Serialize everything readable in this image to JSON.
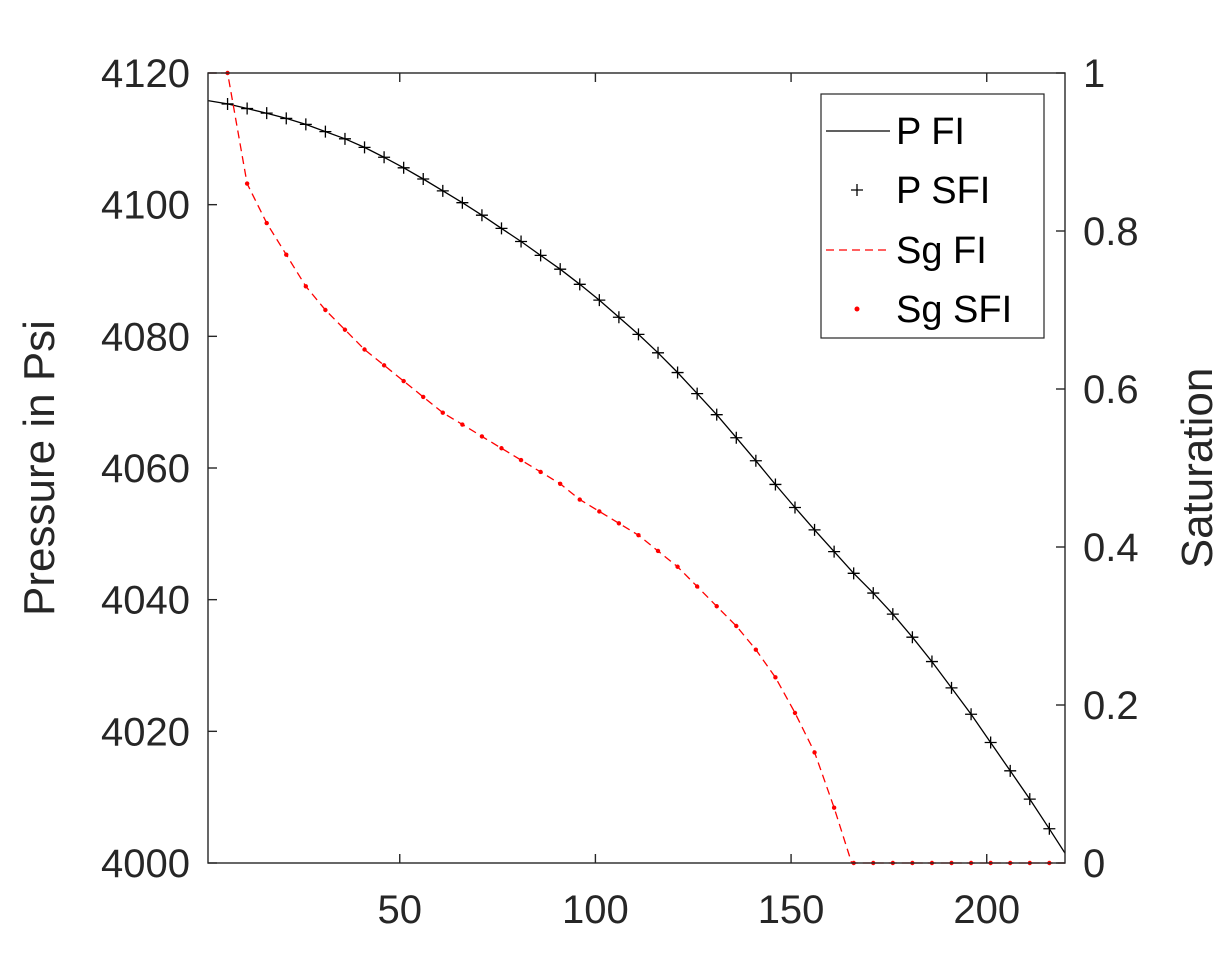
{
  "chart_data": {
    "type": "line",
    "xlabel": "",
    "ylabel_left": "Pressure in Psi",
    "ylabel_right": "Saturation",
    "xlim": [
      1,
      220
    ],
    "ylim_left": [
      4000,
      4120
    ],
    "ylim_right": [
      0,
      1
    ],
    "x_ticks": [
      50,
      100,
      150,
      200
    ],
    "y_left_ticks": [
      4000,
      4020,
      4040,
      4060,
      4080,
      4100,
      4120
    ],
    "y_right_ticks": [
      0,
      0.2,
      0.4,
      0.6,
      0.8,
      1
    ],
    "y_right_tick_labels": [
      "0",
      "0.2",
      "0.4",
      "0.6",
      "0.8",
      "1"
    ],
    "grid": false,
    "legend_position": "top-right",
    "series": [
      {
        "name": "P FI",
        "axis": "left",
        "style": "solid",
        "color": "#000000",
        "x": [
          1,
          6,
          11,
          16,
          21,
          26,
          31,
          36,
          41,
          46,
          51,
          56,
          61,
          66,
          71,
          76,
          81,
          86,
          91,
          96,
          101,
          106,
          111,
          116,
          121,
          126,
          131,
          136,
          141,
          146,
          151,
          156,
          161,
          166,
          171,
          176,
          181,
          186,
          191,
          196,
          201,
          206,
          211,
          216,
          220
        ],
        "y": [
          4115.8,
          4115.3,
          4114.6,
          4113.9,
          4113.1,
          4112.2,
          4111.1,
          4110.0,
          4108.7,
          4107.2,
          4105.6,
          4103.9,
          4102.1,
          4100.3,
          4098.4,
          4096.4,
          4094.4,
          4092.3,
          4090.2,
          4087.9,
          4085.5,
          4082.9,
          4080.3,
          4077.5,
          4074.5,
          4071.3,
          4068.1,
          4064.6,
          4061.1,
          4057.5,
          4054.0,
          4050.6,
          4047.3,
          4044.0,
          4041.0,
          4037.8,
          4034.3,
          4030.6,
          4026.6,
          4022.6,
          4018.3,
          4014.0,
          4009.7,
          4005.2,
          4001.5
        ]
      },
      {
        "name": "P SFI",
        "axis": "left",
        "style": "plus",
        "color": "#000000",
        "x": [
          6,
          11,
          16,
          21,
          26,
          31,
          36,
          41,
          46,
          51,
          56,
          61,
          66,
          71,
          76,
          81,
          86,
          91,
          96,
          101,
          106,
          111,
          116,
          121,
          126,
          131,
          136,
          141,
          146,
          151,
          156,
          161,
          166,
          171,
          176,
          181,
          186,
          191,
          196,
          201,
          206,
          211,
          216
        ],
        "y": [
          4115.3,
          4114.6,
          4113.9,
          4113.1,
          4112.2,
          4111.1,
          4110.0,
          4108.7,
          4107.2,
          4105.6,
          4103.9,
          4102.1,
          4100.3,
          4098.4,
          4096.4,
          4094.4,
          4092.3,
          4090.2,
          4087.9,
          4085.5,
          4082.9,
          4080.3,
          4077.5,
          4074.5,
          4071.3,
          4068.1,
          4064.6,
          4061.1,
          4057.5,
          4054.0,
          4050.6,
          4047.3,
          4044.0,
          4041.0,
          4037.8,
          4034.3,
          4030.6,
          4026.6,
          4022.6,
          4018.3,
          4014.0,
          4009.7,
          4005.2
        ]
      },
      {
        "name": "Sg FI",
        "axis": "right",
        "style": "dashed",
        "color": "#ff0000",
        "x": [
          1,
          6,
          11,
          16,
          21,
          26,
          31,
          36,
          41,
          46,
          51,
          56,
          61,
          66,
          71,
          76,
          81,
          86,
          91,
          96,
          101,
          106,
          111,
          116,
          121,
          126,
          131,
          136,
          141,
          146,
          151,
          156,
          161,
          165.5,
          170,
          180,
          190,
          200,
          210,
          220
        ],
        "y": [
          1.0,
          1.0,
          0.86,
          0.81,
          0.77,
          0.73,
          0.7,
          0.675,
          0.65,
          0.63,
          0.61,
          0.59,
          0.57,
          0.555,
          0.54,
          0.525,
          0.51,
          0.495,
          0.48,
          0.46,
          0.445,
          0.43,
          0.415,
          0.395,
          0.375,
          0.35,
          0.325,
          0.3,
          0.27,
          0.235,
          0.19,
          0.14,
          0.07,
          0.0,
          0.0,
          0.0,
          0.0,
          0.0,
          0.0,
          0.0
        ]
      },
      {
        "name": "Sg SFI",
        "axis": "right",
        "style": "dot",
        "color": "#ff0000",
        "x": [
          6,
          11,
          16,
          21,
          26,
          31,
          36,
          41,
          46,
          51,
          56,
          61,
          66,
          71,
          76,
          81,
          86,
          91,
          96,
          101,
          106,
          111,
          116,
          121,
          126,
          131,
          136,
          141,
          146,
          151,
          156,
          161,
          166,
          171,
          176,
          181,
          186,
          191,
          196,
          201,
          206,
          211,
          216
        ],
        "y": [
          1.0,
          0.86,
          0.81,
          0.77,
          0.73,
          0.7,
          0.675,
          0.65,
          0.63,
          0.61,
          0.59,
          0.57,
          0.555,
          0.54,
          0.525,
          0.51,
          0.495,
          0.48,
          0.46,
          0.445,
          0.43,
          0.415,
          0.395,
          0.375,
          0.35,
          0.325,
          0.3,
          0.27,
          0.235,
          0.19,
          0.14,
          0.07,
          0.0,
          0.0,
          0.0,
          0.0,
          0.0,
          0.0,
          0.0,
          0.0,
          0.0,
          0.0,
          0.0
        ]
      }
    ]
  }
}
